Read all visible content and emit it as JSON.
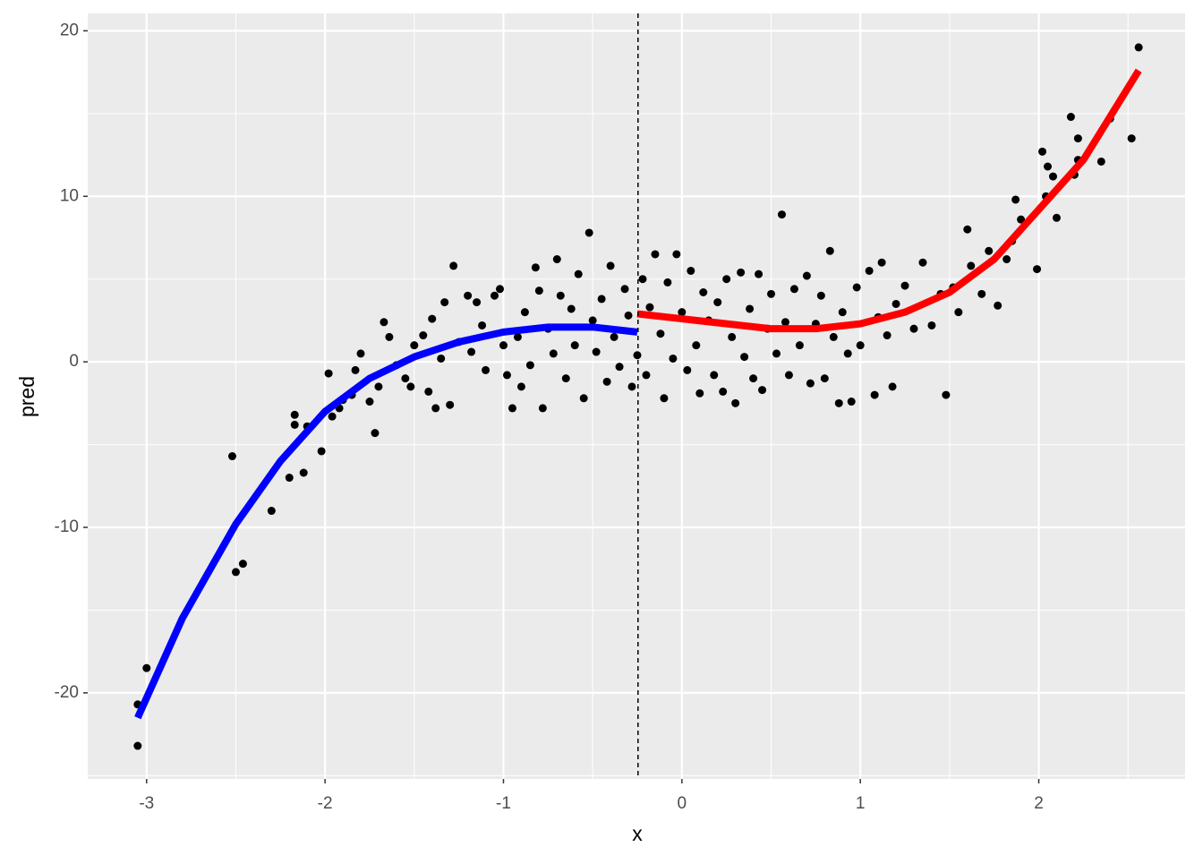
{
  "chart_data": {
    "type": "scatter",
    "x_label": "x",
    "y_label": "pred",
    "xlim": [
      -3.33,
      2.82
    ],
    "ylim": [
      -25.2,
      21.05
    ],
    "xticks": [
      -3,
      -2,
      -1,
      0,
      1,
      2
    ],
    "yticks": [
      -20,
      -10,
      0,
      10,
      20
    ],
    "grid": true,
    "minor_grid": true,
    "point_color": "#000000",
    "x": [
      -3.05,
      -3.05,
      -3.0,
      -2.52,
      -2.5,
      -2.46,
      -2.3,
      -2.2,
      -2.17,
      -2.17,
      -2.12,
      -2.1,
      -2.02,
      -1.98,
      -1.96,
      -1.92,
      -1.9,
      -1.85,
      -1.83,
      -1.8,
      -1.75,
      -1.72,
      -1.7,
      -1.67,
      -1.64,
      -1.6,
      -1.55,
      -1.52,
      -1.5,
      -1.45,
      -1.42,
      -1.4,
      -1.38,
      -1.35,
      -1.33,
      -1.3,
      -1.28,
      -1.25,
      -1.2,
      -1.18,
      -1.15,
      -1.12,
      -1.1,
      -1.05,
      -1.02,
      -1.0,
      -0.98,
      -0.95,
      -0.92,
      -0.9,
      -0.88,
      -0.85,
      -0.82,
      -0.8,
      -0.78,
      -0.75,
      -0.72,
      -0.7,
      -0.68,
      -0.65,
      -0.62,
      -0.6,
      -0.58,
      -0.55,
      -0.52,
      -0.5,
      -0.48,
      -0.45,
      -0.42,
      -0.4,
      -0.38,
      -0.35,
      -0.32,
      -0.3,
      -0.28,
      -0.25,
      -0.22,
      -0.2,
      -0.18,
      -0.15,
      -0.12,
      -0.1,
      -0.08,
      -0.05,
      -0.03,
      0.0,
      0.03,
      0.05,
      0.08,
      0.1,
      0.12,
      0.15,
      0.18,
      0.2,
      0.23,
      0.25,
      0.28,
      0.3,
      0.33,
      0.35,
      0.38,
      0.4,
      0.43,
      0.45,
      0.48,
      0.5,
      0.53,
      0.56,
      0.58,
      0.6,
      0.63,
      0.66,
      0.7,
      0.72,
      0.75,
      0.78,
      0.8,
      0.83,
      0.85,
      0.88,
      0.9,
      0.93,
      0.95,
      0.98,
      1.0,
      1.05,
      1.08,
      1.1,
      1.12,
      1.15,
      1.18,
      1.2,
      1.25,
      1.3,
      1.35,
      1.4,
      1.45,
      1.48,
      1.52,
      1.55,
      1.6,
      1.62,
      1.68,
      1.72,
      1.77,
      1.82,
      1.85,
      1.87,
      1.9,
      1.99,
      2.02,
      2.04,
      2.05,
      2.08,
      2.1,
      2.18,
      2.2,
      2.22,
      2.22,
      2.35,
      2.4,
      2.52,
      2.56
    ],
    "values": [
      -20.7,
      -23.2,
      -18.5,
      -5.7,
      -12.7,
      -12.2,
      -9.0,
      -7.0,
      -3.2,
      -3.8,
      -6.7,
      -3.9,
      -5.4,
      -0.7,
      -3.3,
      -2.8,
      -2.3,
      -2.0,
      -0.5,
      0.5,
      -2.4,
      -4.3,
      -1.5,
      2.4,
      1.5,
      -0.2,
      -1.0,
      -1.5,
      1.0,
      1.6,
      -1.8,
      2.6,
      -2.8,
      0.2,
      3.6,
      -2.6,
      5.8,
      1.2,
      4.0,
      0.6,
      3.6,
      2.2,
      -0.5,
      4.0,
      4.4,
      1.0,
      -0.8,
      -2.8,
      1.5,
      -1.5,
      3.0,
      -0.2,
      5.7,
      4.3,
      -2.8,
      2.0,
      0.5,
      6.2,
      4.0,
      -1.0,
      3.2,
      1.0,
      5.3,
      -2.2,
      7.8,
      2.5,
      0.6,
      3.8,
      -1.2,
      5.8,
      1.5,
      -0.3,
      4.4,
      2.8,
      -1.5,
      0.4,
      5.0,
      -0.8,
      3.3,
      6.5,
      1.7,
      -2.2,
      4.8,
      0.2,
      6.5,
      3.0,
      -0.5,
      5.5,
      1.0,
      -1.9,
      4.2,
      2.5,
      -0.8,
      3.6,
      -1.8,
      5.0,
      1.5,
      -2.5,
      5.4,
      0.3,
      3.2,
      -1.0,
      5.3,
      -1.7,
      2.0,
      4.1,
      0.5,
      8.9,
      2.4,
      -0.8,
      4.4,
      1.0,
      5.2,
      -1.3,
      2.3,
      4.0,
      -1.0,
      6.7,
      1.5,
      -2.5,
      3.0,
      0.5,
      -2.4,
      4.5,
      1.0,
      5.5,
      -2.0,
      2.7,
      6.0,
      1.6,
      -1.5,
      3.5,
      4.6,
      2.0,
      6.0,
      2.2,
      4.1,
      -2.0,
      4.5,
      3.0,
      8.0,
      5.8,
      4.1,
      6.7,
      3.4,
      6.2,
      7.3,
      9.8,
      8.6,
      5.6,
      12.7,
      10.0,
      11.8,
      11.2,
      8.7,
      14.8,
      11.3,
      12.2,
      13.5,
      12.1,
      14.7,
      13.5,
      19.0
    ],
    "lines": [
      {
        "color": "#0000ff",
        "x": [
          -3.05,
          -2.8,
          -2.5,
          -2.25,
          -2.0,
          -1.75,
          -1.5,
          -1.25,
          -1.0,
          -0.75,
          -0.5,
          -0.25
        ],
        "values": [
          -21.5,
          -15.5,
          -9.8,
          -6.0,
          -3.0,
          -1.0,
          0.3,
          1.2,
          1.8,
          2.1,
          2.1,
          1.8
        ]
      },
      {
        "color": "#ff0000",
        "x": [
          -0.25,
          0.0,
          0.25,
          0.5,
          0.75,
          1.0,
          1.25,
          1.5,
          1.75,
          2.0,
          2.25,
          2.56
        ],
        "values": [
          2.9,
          2.6,
          2.3,
          2.0,
          2.0,
          2.3,
          3.0,
          4.2,
          6.2,
          9.2,
          12.2,
          17.6
        ]
      }
    ],
    "vline": -0.246
  }
}
